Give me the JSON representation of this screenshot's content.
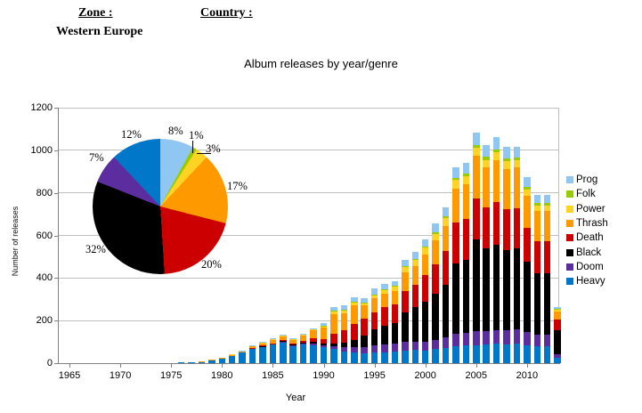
{
  "header": {
    "zone_label": "Zone :",
    "zone_value": "Western Europe",
    "country_label": "Country :"
  },
  "chart_data": {
    "type": "bar",
    "subtype": "stacked-bar-with-pie-inset",
    "title": "Album releases by year/genre",
    "xlabel": "Year",
    "ylabel": "Number of releases",
    "ylim": [
      0,
      1200
    ],
    "yticks": [
      0,
      200,
      400,
      600,
      800,
      1000,
      1200
    ],
    "xticks": [
      1965,
      1970,
      1975,
      1980,
      1985,
      1990,
      1995,
      2000,
      2005,
      2010
    ],
    "grid": true,
    "legend_position": "right",
    "legend_order_top_to_bottom": [
      "Prog",
      "Folk",
      "Power",
      "Thrash",
      "Death",
      "Black",
      "Doom",
      "Heavy"
    ],
    "years": [
      1975,
      1976,
      1977,
      1978,
      1979,
      1980,
      1981,
      1982,
      1983,
      1984,
      1985,
      1986,
      1987,
      1988,
      1989,
      1990,
      1991,
      1992,
      1993,
      1994,
      1995,
      1996,
      1997,
      1998,
      1999,
      2000,
      2001,
      2002,
      2003,
      2004,
      2005,
      2006,
      2007,
      2008,
      2009,
      2010,
      2011,
      2012,
      2013
    ],
    "series_bottom_to_top": [
      {
        "name": "Heavy",
        "color": "#0077C8",
        "values": [
          2,
          3,
          3,
          7,
          13,
          23,
          35,
          52,
          70,
          80,
          88,
          100,
          82,
          88,
          85,
          76,
          66,
          56,
          50,
          48,
          50,
          52,
          55,
          60,
          62,
          60,
          65,
          70,
          80,
          82,
          85,
          88,
          90,
          88,
          90,
          85,
          78,
          78,
          25
        ]
      },
      {
        "name": "Doom",
        "color": "#5C2D9E",
        "values": [
          0,
          0,
          0,
          0,
          0,
          0,
          0,
          0,
          0,
          0,
          0,
          1,
          2,
          4,
          8,
          8,
          13,
          20,
          25,
          28,
          32,
          35,
          35,
          40,
          40,
          42,
          45,
          50,
          60,
          62,
          65,
          62,
          65,
          65,
          68,
          60,
          55,
          55,
          18
        ]
      },
      {
        "name": "Black",
        "color": "#000000",
        "values": [
          0,
          0,
          0,
          0,
          0,
          0,
          0,
          0,
          0,
          1,
          2,
          4,
          5,
          6,
          8,
          10,
          13,
          20,
          35,
          55,
          75,
          90,
          100,
          140,
          160,
          185,
          215,
          250,
          330,
          340,
          430,
          390,
          400,
          380,
          380,
          330,
          290,
          290,
          110
        ]
      },
      {
        "name": "Death",
        "color": "#CC0000",
        "values": [
          0,
          0,
          0,
          0,
          0,
          0,
          0,
          0,
          1,
          1,
          2,
          3,
          5,
          8,
          14,
          18,
          46,
          60,
          76,
          76,
          80,
          85,
          85,
          100,
          105,
          125,
          140,
          155,
          190,
          195,
          195,
          190,
          200,
          190,
          190,
          160,
          150,
          150,
          50
        ]
      },
      {
        "name": "Thrash",
        "color": "#FF9900",
        "values": [
          0,
          0,
          0,
          1,
          2,
          3,
          4,
          5,
          9,
          12,
          15,
          18,
          16,
          24,
          38,
          56,
          94,
          80,
          85,
          64,
          70,
          65,
          65,
          85,
          90,
          100,
          110,
          120,
          160,
          160,
          200,
          190,
          199,
          190,
          190,
          150,
          140,
          140,
          40
        ]
      },
      {
        "name": "Power",
        "color": "#FFD324",
        "values": [
          0,
          0,
          0,
          0,
          0,
          0,
          1,
          2,
          3,
          3,
          4,
          4,
          4,
          5,
          6,
          8,
          12,
          12,
          14,
          12,
          14,
          16,
          18,
          25,
          28,
          30,
          32,
          35,
          40,
          40,
          35,
          35,
          35,
          35,
          35,
          30,
          28,
          27,
          8
        ]
      },
      {
        "name": "Folk",
        "color": "#99CC00",
        "values": [
          0,
          0,
          0,
          0,
          0,
          0,
          0,
          0,
          0,
          0,
          0,
          0,
          0,
          0,
          0,
          1,
          2,
          2,
          2,
          2,
          3,
          4,
          4,
          6,
          6,
          7,
          9,
          10,
          11,
          12,
          14,
          14,
          15,
          14,
          14,
          12,
          11,
          11,
          3
        ]
      },
      {
        "name": "Prog",
        "color": "#8FC6F2",
        "values": [
          0,
          0,
          0,
          0,
          0,
          0,
          0,
          1,
          2,
          3,
          4,
          5,
          4,
          5,
          6,
          13,
          19,
          22,
          23,
          22,
          28,
          26,
          24,
          30,
          31,
          34,
          40,
          40,
          49,
          49,
          57,
          57,
          59,
          53,
          51,
          47,
          38,
          38,
          9
        ]
      }
    ],
    "pie": {
      "description": "genre share, slices clockwise from 12 o'clock",
      "slices_clockwise_from_top": [
        {
          "name": "Prog",
          "pct": 8,
          "color": "#8FC6F2"
        },
        {
          "name": "Folk",
          "pct": 1,
          "color": "#99CC00"
        },
        {
          "name": "Power",
          "pct": 3,
          "color": "#FFD324"
        },
        {
          "name": "Thrash",
          "pct": 17,
          "color": "#FF9900"
        },
        {
          "name": "Death",
          "pct": 20,
          "color": "#CC0000"
        },
        {
          "name": "Black",
          "pct": 32,
          "color": "#000000"
        },
        {
          "name": "Doom",
          "pct": 7,
          "color": "#5C2D9E"
        },
        {
          "name": "Heavy",
          "pct": 12,
          "color": "#0077C8"
        }
      ]
    }
  }
}
